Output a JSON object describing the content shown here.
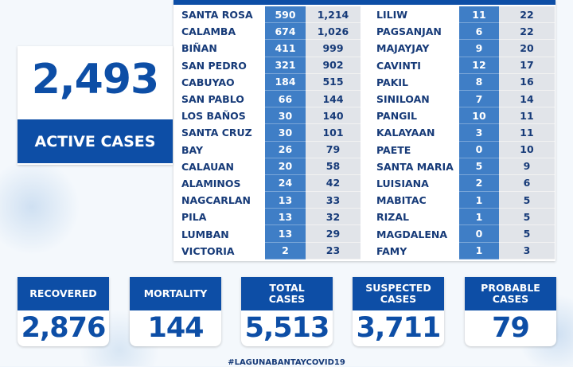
{
  "active": {
    "value": "2,493",
    "label": "ACTIVE CASES"
  },
  "left_rows": [
    [
      "SANTA ROSA",
      "590",
      "1,214"
    ],
    [
      "CALAMBA",
      "674",
      "1,026"
    ],
    [
      "BIÑAN",
      "411",
      "999"
    ],
    [
      "SAN PEDRO",
      "321",
      "902"
    ],
    [
      "CABUYAO",
      "184",
      "515"
    ],
    [
      "SAN PABLO",
      "66",
      "144"
    ],
    [
      "LOS BAÑOS",
      "30",
      "140"
    ],
    [
      "SANTA CRUZ",
      "30",
      "101"
    ],
    [
      "BAY",
      "26",
      "79"
    ],
    [
      "CALAUAN",
      "20",
      "58"
    ],
    [
      "ALAMINOS",
      "24",
      "42"
    ],
    [
      "NAGCARLAN",
      "13",
      "33"
    ],
    [
      "PILA",
      "13",
      "32"
    ],
    [
      "LUMBAN",
      "13",
      "29"
    ],
    [
      "VICTORIA",
      "2",
      "23"
    ]
  ],
  "right_rows": [
    [
      "LILIW",
      "11",
      "22"
    ],
    [
      "PAGSANJAN",
      "6",
      "22"
    ],
    [
      "MAJAYJAY",
      "9",
      "20"
    ],
    [
      "CAVINTI",
      "12",
      "17"
    ],
    [
      "PAKIL",
      "8",
      "16"
    ],
    [
      "SINILOAN",
      "7",
      "14"
    ],
    [
      "PANGIL",
      "10",
      "11"
    ],
    [
      "KALAYAAN",
      "3",
      "11"
    ],
    [
      "PAETE",
      "0",
      "10"
    ],
    [
      "SANTA MARIA",
      "5",
      "9"
    ],
    [
      "LUISIANA",
      "2",
      "6"
    ],
    [
      "MABITAC",
      "1",
      "5"
    ],
    [
      "RIZAL",
      "1",
      "5"
    ],
    [
      "MAGDALENA",
      "0",
      "5"
    ],
    [
      "FAMY",
      "1",
      "3"
    ]
  ],
  "cards": [
    {
      "label": "RECOVERED",
      "value": "2,876"
    },
    {
      "label": "MORTALITY",
      "value": "144"
    },
    {
      "label": "TOTAL\nCASES",
      "value": "5,513"
    },
    {
      "label": "SUSPECTED\nCASES",
      "value": "3,711"
    },
    {
      "label": "PROBABLE\nCASES",
      "value": "79"
    }
  ],
  "hashtag": "#LAGUNABANTAYCOVID19"
}
